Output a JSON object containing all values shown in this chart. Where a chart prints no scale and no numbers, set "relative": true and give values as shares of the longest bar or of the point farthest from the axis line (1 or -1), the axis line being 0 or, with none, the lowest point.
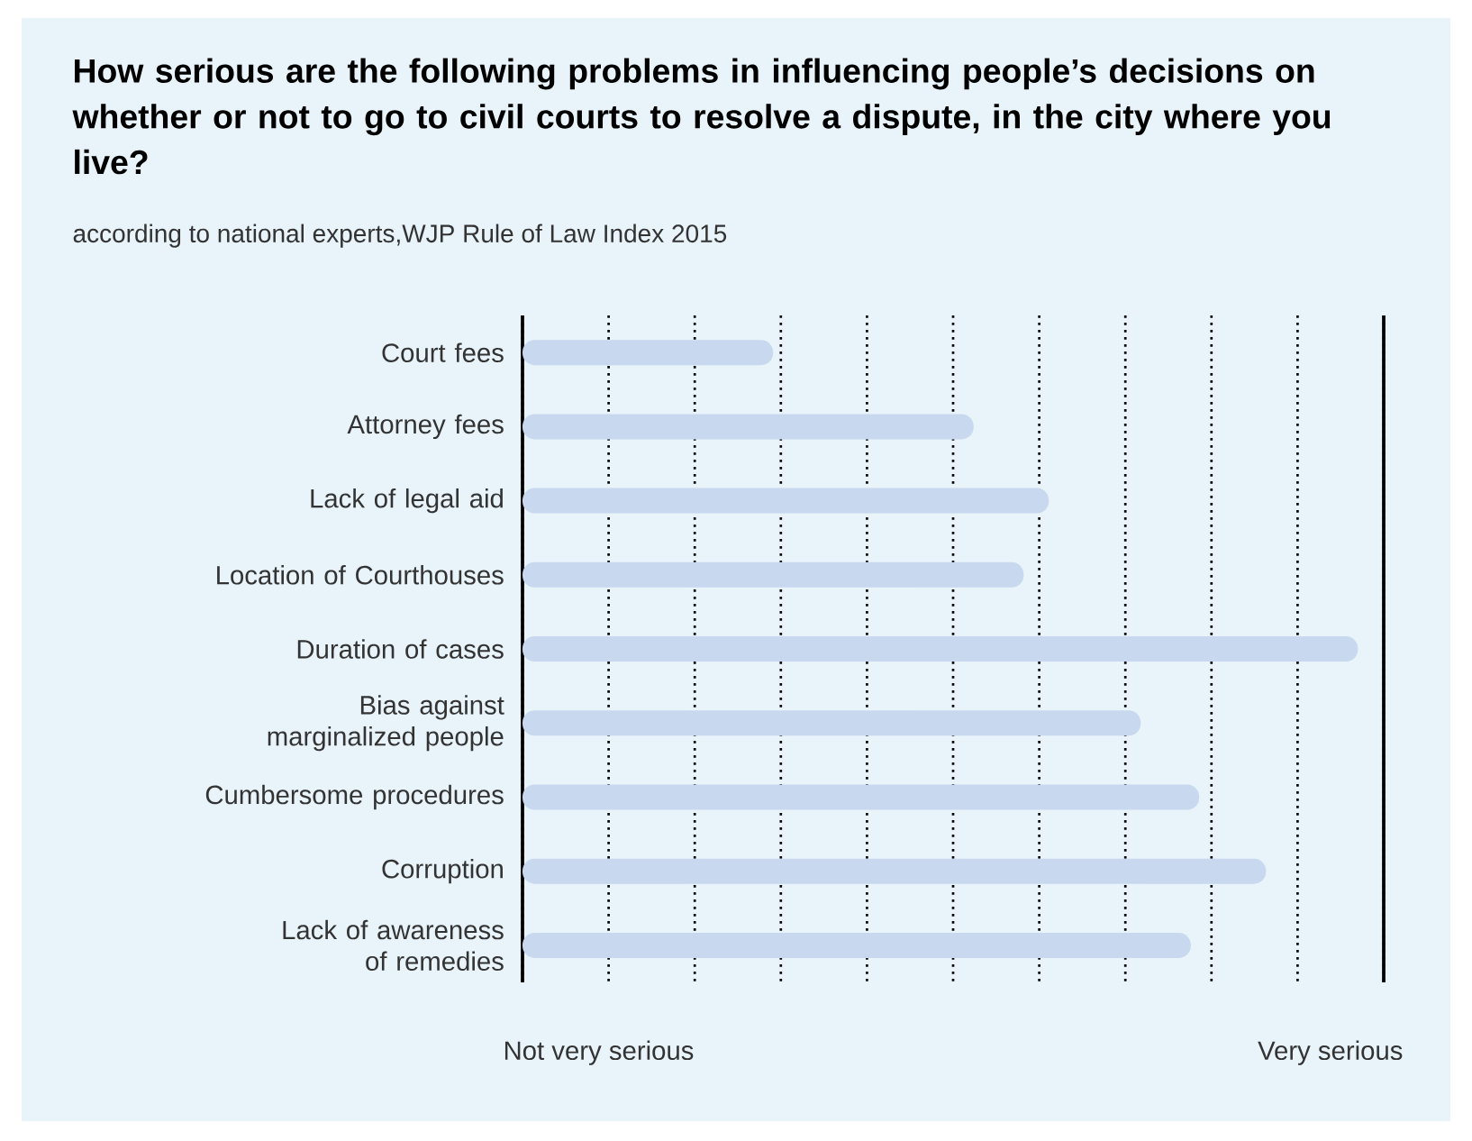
{
  "chart_data": {
    "type": "bar",
    "orientation": "horizontal",
    "relative": true,
    "title": "How serious are the following problems in influencing people’s decisions on whether or not to go to civil courts to resolve a dispute, in the city where you live?",
    "subtitle": "according to national experts,WJP Rule of Law Index 2015",
    "categories": [
      "Court fees",
      "Attorney fees",
      "Lack of legal aid",
      "Location of Courthouses",
      "Duration of cases",
      "Bias against marginalized people",
      "Cumbersome procedures",
      "Corruption",
      "Lack of awareness of remedies"
    ],
    "values": [
      0.3,
      0.54,
      0.63,
      0.6,
      1,
      0.74,
      0.81,
      0.89,
      0.8
    ],
    "color": "#c8d8ee",
    "annotations": [
      "Not very serious",
      "Very serious"
    ],
    "grid": "x"
  }
}
